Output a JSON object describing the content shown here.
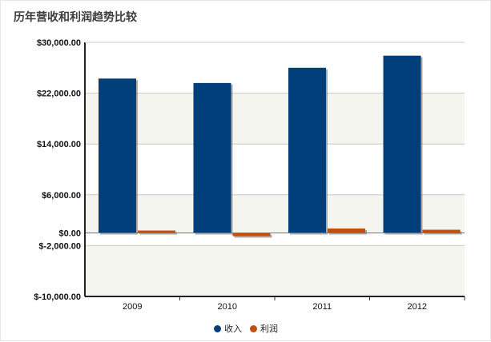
{
  "page": {
    "title": "历年营收和利润趋势比较"
  },
  "chart_data": {
    "type": "bar",
    "title": "历年营收和利润趋势比较",
    "categories": [
      "2009",
      "2010",
      "2011",
      "2012"
    ],
    "series": [
      {
        "name": "收入",
        "color": "#003f7a",
        "values": [
          24300,
          23600,
          26000,
          27900
        ]
      },
      {
        "name": "利润",
        "color": "#c0500f",
        "values": [
          150,
          -500,
          700,
          500
        ]
      }
    ],
    "yticks": [
      30000,
      22000,
      14000,
      6000,
      0,
      -2000,
      -10000
    ],
    "ytick_labels": [
      "$30,000.00",
      "$22,000.00",
      "$14,000.00",
      "$6,000.00",
      "$0.00",
      "$-2,000.00",
      "$-10,000.00"
    ],
    "ylim": [
      -10000,
      30000
    ],
    "xlabel": "",
    "ylabel": "",
    "grid": true,
    "legend_position": "bottom"
  }
}
